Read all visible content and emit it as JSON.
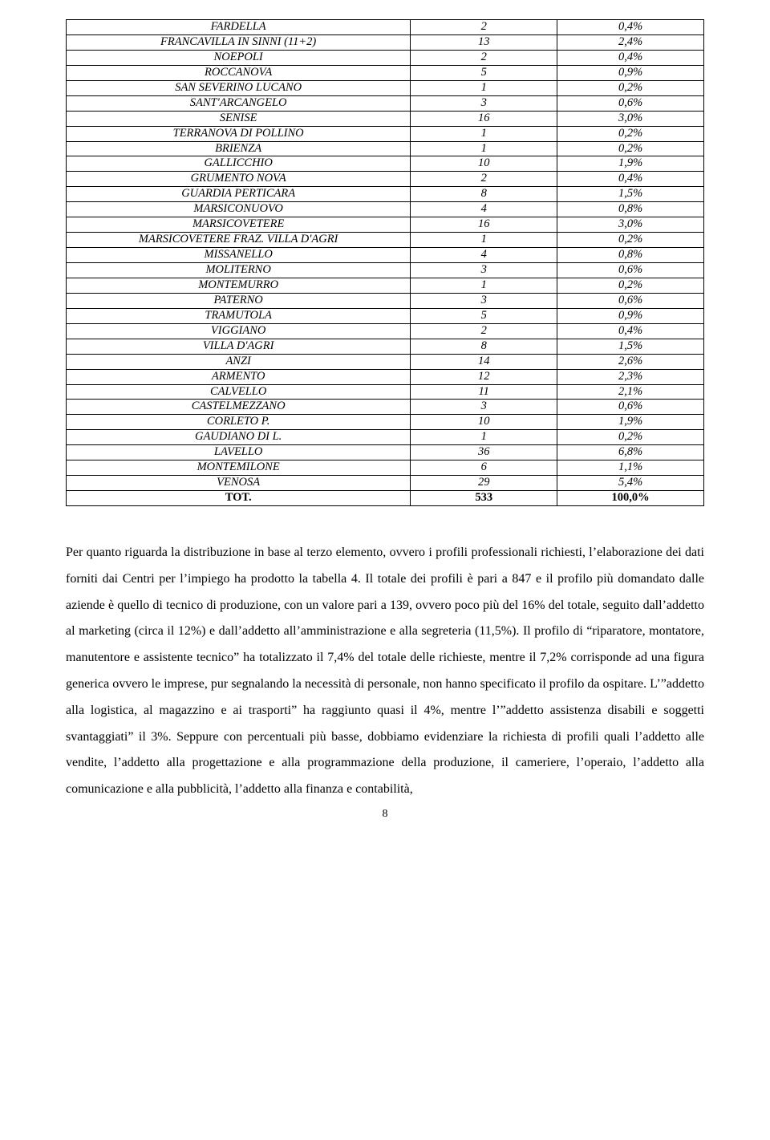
{
  "table": {
    "columns": [
      "name",
      "value",
      "percent"
    ],
    "column_widths": [
      "54%",
      "23%",
      "23%"
    ],
    "border_color": "#000000",
    "background_color": "#ffffff",
    "font_family": "Times New Roman",
    "font_style": "italic",
    "font_size_pt": 11,
    "cell_align": "center",
    "last_row_bold": true,
    "rows": [
      {
        "name": "FARDELLA",
        "value": "2",
        "percent": "0,4%"
      },
      {
        "name": "FRANCAVILLA IN SINNI (11+2)",
        "value": "13",
        "percent": "2,4%"
      },
      {
        "name": "NOEPOLI",
        "value": "2",
        "percent": "0,4%"
      },
      {
        "name": "ROCCANOVA",
        "value": "5",
        "percent": "0,9%"
      },
      {
        "name": "SAN SEVERINO LUCANO",
        "value": "1",
        "percent": "0,2%"
      },
      {
        "name": "SANT'ARCANGELO",
        "value": "3",
        "percent": "0,6%"
      },
      {
        "name": "SENISE",
        "value": "16",
        "percent": "3,0%"
      },
      {
        "name": "TERRANOVA DI POLLINO",
        "value": "1",
        "percent": "0,2%"
      },
      {
        "name": "BRIENZA",
        "value": "1",
        "percent": "0,2%"
      },
      {
        "name": "GALLICCHIO",
        "value": "10",
        "percent": "1,9%"
      },
      {
        "name": "GRUMENTO NOVA",
        "value": "2",
        "percent": "0,4%"
      },
      {
        "name": "GUARDIA PERTICARA",
        "value": "8",
        "percent": "1,5%"
      },
      {
        "name": "MARSICONUOVO",
        "value": "4",
        "percent": "0,8%"
      },
      {
        "name": "MARSICOVETERE",
        "value": "16",
        "percent": "3,0%"
      },
      {
        "name": "MARSICOVETERE FRAZ. VILLA D'AGRI",
        "value": "1",
        "percent": "0,2%"
      },
      {
        "name": "MISSANELLO",
        "value": "4",
        "percent": "0,8%"
      },
      {
        "name": "MOLITERNO",
        "value": "3",
        "percent": "0,6%"
      },
      {
        "name": "MONTEMURRO",
        "value": "1",
        "percent": "0,2%"
      },
      {
        "name": "PATERNO",
        "value": "3",
        "percent": "0,6%"
      },
      {
        "name": "TRAMUTOLA",
        "value": "5",
        "percent": "0,9%"
      },
      {
        "name": "VIGGIANO",
        "value": "2",
        "percent": "0,4%"
      },
      {
        "name": "VILLA D'AGRI",
        "value": "8",
        "percent": "1,5%"
      },
      {
        "name": "ANZI",
        "value": "14",
        "percent": "2,6%"
      },
      {
        "name": "ARMENTO",
        "value": "12",
        "percent": "2,3%"
      },
      {
        "name": "CALVELLO",
        "value": "11",
        "percent": "2,1%"
      },
      {
        "name": "CASTELMEZZANO",
        "value": "3",
        "percent": "0,6%"
      },
      {
        "name": "CORLETO P.",
        "value": "10",
        "percent": "1,9%"
      },
      {
        "name": "GAUDIANO DI L.",
        "value": "1",
        "percent": "0,2%"
      },
      {
        "name": "LAVELLO",
        "value": "36",
        "percent": "6,8%"
      },
      {
        "name": "MONTEMILONE",
        "value": "6",
        "percent": "1,1%"
      },
      {
        "name": "VENOSA",
        "value": "29",
        "percent": "5,4%"
      },
      {
        "name": "TOT.",
        "value": "533",
        "percent": "100,0%"
      }
    ]
  },
  "paragraph": {
    "font_size_pt": 12,
    "font_family": "Times New Roman",
    "line_height": 2.05,
    "text_align": "justify",
    "text_color": "#000000",
    "text": "Per quanto riguarda la distribuzione in base al terzo elemento, ovvero i profili professionali richiesti, l’elaborazione dei dati forniti dai Centri per l’impiego ha prodotto la tabella 4. Il totale dei profili è pari a 847 e il profilo più domandato dalle aziende è quello di tecnico di produzione, con un valore pari a 139, ovvero poco più del 16% del totale, seguito dall’addetto al marketing (circa il 12%) e dall’addetto all’amministrazione e alla segreteria (11,5%). Il profilo di “riparatore, montatore, manutentore e assistente tecnico” ha totalizzato il 7,4% del totale delle richieste, mentre il 7,2% corrisponde ad una figura generica ovvero le imprese, pur segnalando la necessità di personale, non hanno specificato il profilo da ospitare. L’”addetto alla logistica, al magazzino e ai trasporti” ha raggiunto quasi il 4%, mentre l’”addetto assistenza disabili e soggetti svantaggiati” il 3%. Seppure con percentuali più basse, dobbiamo evidenziare la richiesta di profili quali l’addetto alle vendite, l’addetto alla progettazione e alla programmazione della produzione, il cameriere, l’operaio, l’addetto alla comunicazione e alla pubblicità, l’addetto alla finanza e contabilità,"
  },
  "page_number": "8"
}
